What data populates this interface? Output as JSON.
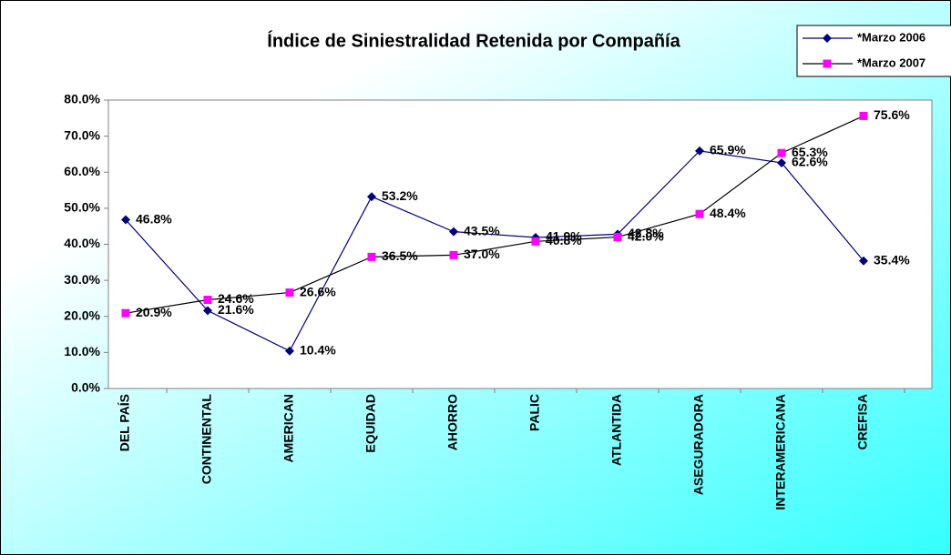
{
  "chart_data": {
    "type": "line",
    "title": "Índice de Siniestralidad Retenida por Compañía",
    "categories": [
      "DEL PAÍS",
      "CONTINENTAL",
      "AMERICAN",
      "EQUIDAD",
      "AHORRO",
      "PALIC",
      "ATLANTIDA",
      "ASEGURADORA",
      "INTERAMERICANA",
      "CREFISA"
    ],
    "series": [
      {
        "name": "*Marzo 2006",
        "color": "#000080",
        "marker": "diamond",
        "values": [
          46.8,
          21.6,
          10.4,
          53.2,
          43.5,
          41.9,
          42.8,
          65.9,
          62.6,
          35.4
        ],
        "value_labels": [
          "46.8%",
          "21.6%",
          "10.4%",
          "53.2%",
          "43.5%",
          "41.9%",
          "42.8%",
          "65.9%",
          "62.6%",
          "35.4%"
        ]
      },
      {
        "name": "*Marzo 2007",
        "color": "#ff00ff",
        "marker": "square",
        "values": [
          20.9,
          24.6,
          26.6,
          36.5,
          37.0,
          40.8,
          42.0,
          48.4,
          65.3,
          75.6
        ],
        "value_labels": [
          "20.9%",
          "24.6%",
          "26.6%",
          "36.5%",
          "37.0%",
          "40.8%",
          "42.0%",
          "48.4%",
          "65.3%",
          "75.6%"
        ]
      }
    ],
    "ylim": [
      0,
      80
    ],
    "yticks": [
      {
        "value": 0,
        "label": "0.0%"
      },
      {
        "value": 10,
        "label": "10.0%"
      },
      {
        "value": 20,
        "label": "20.0%"
      },
      {
        "value": 30,
        "label": "30.0%"
      },
      {
        "value": 40,
        "label": "40.0%"
      },
      {
        "value": 50,
        "label": "50.0%"
      },
      {
        "value": 60,
        "label": "60.0%"
      },
      {
        "value": 70,
        "label": "70.0%"
      },
      {
        "value": 80,
        "label": "80.0%"
      }
    ],
    "legend": "top-right"
  }
}
